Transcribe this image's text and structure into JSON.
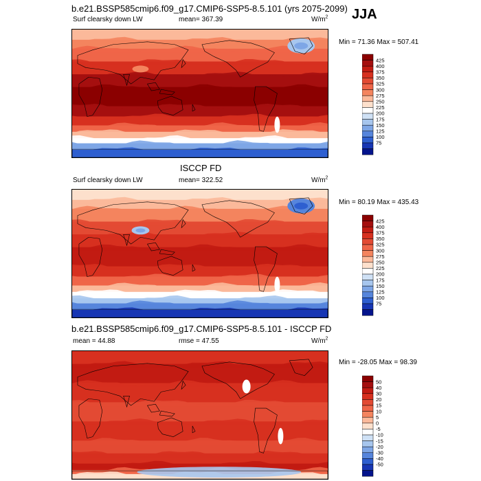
{
  "title_main": "b.e21.BSSP585cmip6.f09_g17.CMIP6-SSP5-8.5.101 (yrs 2075-2099)",
  "season": "JJA",
  "panels": [
    {
      "id": "model",
      "heading": "",
      "variable": "Surf clearsky down LW",
      "mean_text": "mean= 367.39",
      "stat2_text": "",
      "units": "W/m",
      "units_sup": "2",
      "minmax": "Min = 71.36 Max = 507.41",
      "field_style": "model"
    },
    {
      "id": "obs",
      "heading": "ISCCP FD",
      "variable": "Surf clearsky down LW",
      "mean_text": "mean= 322.52",
      "stat2_text": "",
      "units": "W/m",
      "units_sup": "2",
      "minmax": "Min = 80.19 Max = 435.43",
      "field_style": "obs"
    },
    {
      "id": "diff",
      "heading": "b.e21.BSSP585cmip6.f09_g17.CMIP6-SSP5-8.5.101 - ISCCP FD",
      "variable": "",
      "mean_text": "mean =  44.88",
      "stat2_text": "rmse =  47.55",
      "units": "W/m",
      "units_sup": "2",
      "minmax": "Min = -28.05 Max =  98.39",
      "field_style": "diff"
    }
  ],
  "colorbar_abs": {
    "levels": [
      "425",
      "400",
      "375",
      "350",
      "325",
      "300",
      "275",
      "250",
      "225",
      "200",
      "175",
      "150",
      "125",
      "100",
      "75"
    ],
    "colors": [
      "#8b0000",
      "#a50f0f",
      "#c21b12",
      "#d7301f",
      "#e34a33",
      "#ef6548",
      "#f4845e",
      "#fbb99a",
      "#fde0cc",
      "#ffffff",
      "#cfe1f5",
      "#a7c6ee",
      "#7ea6e6",
      "#5685dc",
      "#2e5fd0",
      "#1736b4",
      "#04148c"
    ]
  },
  "colorbar_diff": {
    "levels": [
      "50",
      "40",
      "30",
      "20",
      "15",
      "10",
      "5",
      "0",
      "-5",
      "-10",
      "-15",
      "-20",
      "-30",
      "-40",
      "-50"
    ],
    "colors": [
      "#8b0000",
      "#a50f0f",
      "#c21b12",
      "#d7301f",
      "#e34a33",
      "#ef6548",
      "#f4845e",
      "#fbb99a",
      "#fde0cc",
      "#ffffff",
      "#cfe1f5",
      "#a7c6ee",
      "#7ea6e6",
      "#5685dc",
      "#2e5fd0",
      "#1736b4",
      "#04148c"
    ]
  }
}
